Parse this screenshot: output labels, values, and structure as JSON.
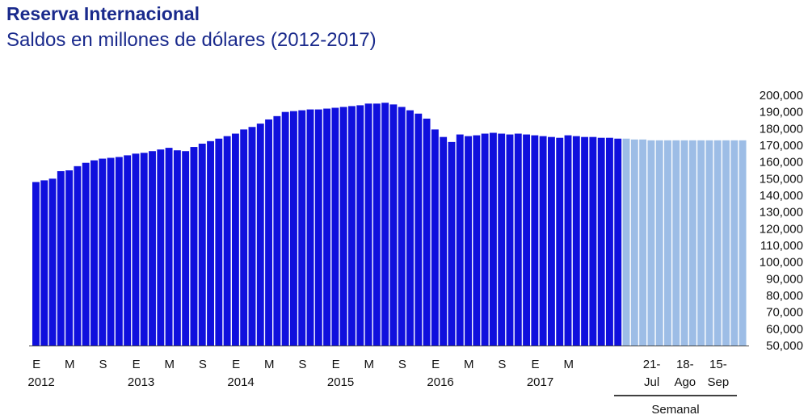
{
  "title": "Reserva Internacional",
  "subtitle": "Saldos en millones de dólares (2012-2017)",
  "colors": {
    "monthly": "#1010dd",
    "weekly": "#9dbde6",
    "title": "#1a2a8c"
  },
  "chart_data": {
    "type": "bar",
    "ylim": [
      50000,
      200000
    ],
    "y_ticks": [
      "200,000",
      "190,000",
      "180,000",
      "170,000",
      "160,000",
      "150,000",
      "140,000",
      "130,000",
      "120,000",
      "110,000",
      "100,000",
      "90,000",
      "80,000",
      "70,000",
      "60,000",
      "50,000"
    ],
    "grid": false,
    "legend": "none",
    "monthly_values": [
      148000,
      149000,
      150000,
      154500,
      155000,
      157500,
      159500,
      161000,
      162000,
      162500,
      163000,
      164000,
      165000,
      165500,
      166500,
      167500,
      168500,
      167000,
      166500,
      169000,
      171000,
      172500,
      174000,
      175500,
      177000,
      179500,
      181000,
      183000,
      185500,
      187500,
      190000,
      190500,
      191000,
      191500,
      191500,
      192000,
      192500,
      193000,
      193500,
      194000,
      195000,
      195000,
      195500,
      194500,
      193000,
      191000,
      189000,
      186000,
      179500,
      175000,
      172000,
      176500,
      175500,
      176000,
      177000,
      177500,
      177000,
      176500,
      177000,
      176500,
      176000,
      175500,
      175000,
      174500,
      176000,
      175500,
      175000,
      175000,
      174500,
      174500,
      174000
    ],
    "weekly_values": [
      174000,
      173500,
      173500,
      173000,
      173000,
      173000,
      173000,
      173000,
      173000,
      173000,
      173000,
      173000,
      173000,
      173000,
      173000
    ],
    "x_tick_labels_row1": [
      "E",
      "M",
      "S",
      "E",
      "M",
      "S",
      "E",
      "M",
      "S",
      "E",
      "M",
      "S",
      "E",
      "M",
      "S",
      "E",
      "M",
      "21-",
      "18-",
      "15-"
    ],
    "x_tick_labels_row2": [
      "2012",
      "2013",
      "2014",
      "2015",
      "2016",
      "2017",
      "Jul",
      "Ago",
      "Sep"
    ],
    "group_label": "Semanal"
  }
}
